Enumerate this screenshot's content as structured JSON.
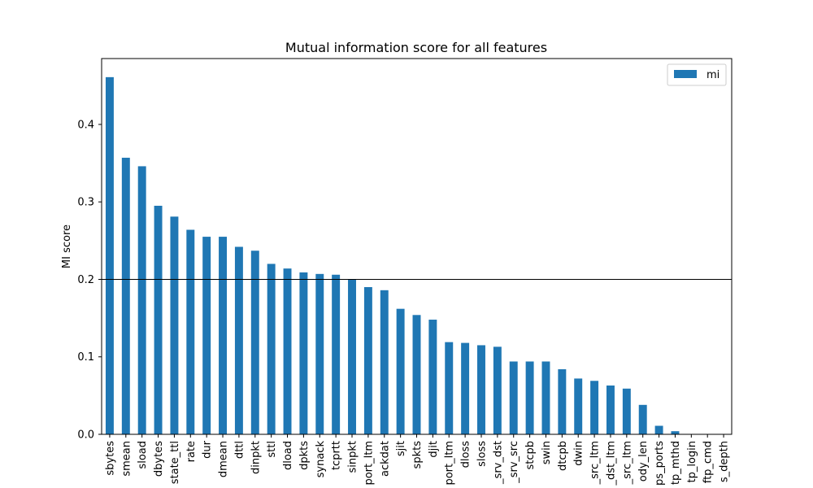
{
  "chart_data": {
    "type": "bar",
    "title": "Mutual information score for all features",
    "xlabel": "",
    "ylabel": "MI score",
    "ylim": [
      0,
      0.485
    ],
    "yticks": [
      "0.0",
      "0.1",
      "0.2",
      "0.3",
      "0.4"
    ],
    "ytick_values": [
      0,
      0.1,
      0.2,
      0.3,
      0.4
    ],
    "reference_line": 0.2,
    "grid": false,
    "legend_position": "top-right",
    "bar_color": "#1f77b4",
    "series": [
      {
        "name": "mi",
        "values": [
          0.461,
          0.357,
          0.346,
          0.295,
          0.281,
          0.264,
          0.255,
          0.255,
          0.242,
          0.237,
          0.22,
          0.214,
          0.209,
          0.207,
          0.206,
          0.2,
          0.19,
          0.186,
          0.162,
          0.154,
          0.148,
          0.119,
          0.118,
          0.115,
          0.113,
          0.094,
          0.094,
          0.094,
          0.084,
          0.072,
          0.069,
          0.063,
          0.059,
          0.038,
          0.011,
          0.004,
          0.0,
          0.0,
          0.0
        ]
      }
    ],
    "categories": [
      "sbytes",
      "smean",
      "sload",
      "dbytes",
      "state_ttl",
      "rate",
      "dur",
      "dmean",
      "dttl",
      "dinpkt",
      "sttl",
      "dload",
      "dpkts",
      "synack",
      "tcprtt",
      "sinpkt",
      "port_ltm",
      "ackdat",
      "sjit",
      "spkts",
      "djit",
      "port_ltm",
      "dloss",
      "sloss",
      "_srv_dst",
      "_srv_src",
      "stcpb",
      "swin",
      "dtcpb",
      "dwin",
      "_src_ltm",
      "_dst_ltm",
      "_src_ltm",
      "ody_len",
      "ps_ports",
      "tp_mthd",
      "tp_login",
      "ftp_cmd",
      "s_depth"
    ]
  }
}
